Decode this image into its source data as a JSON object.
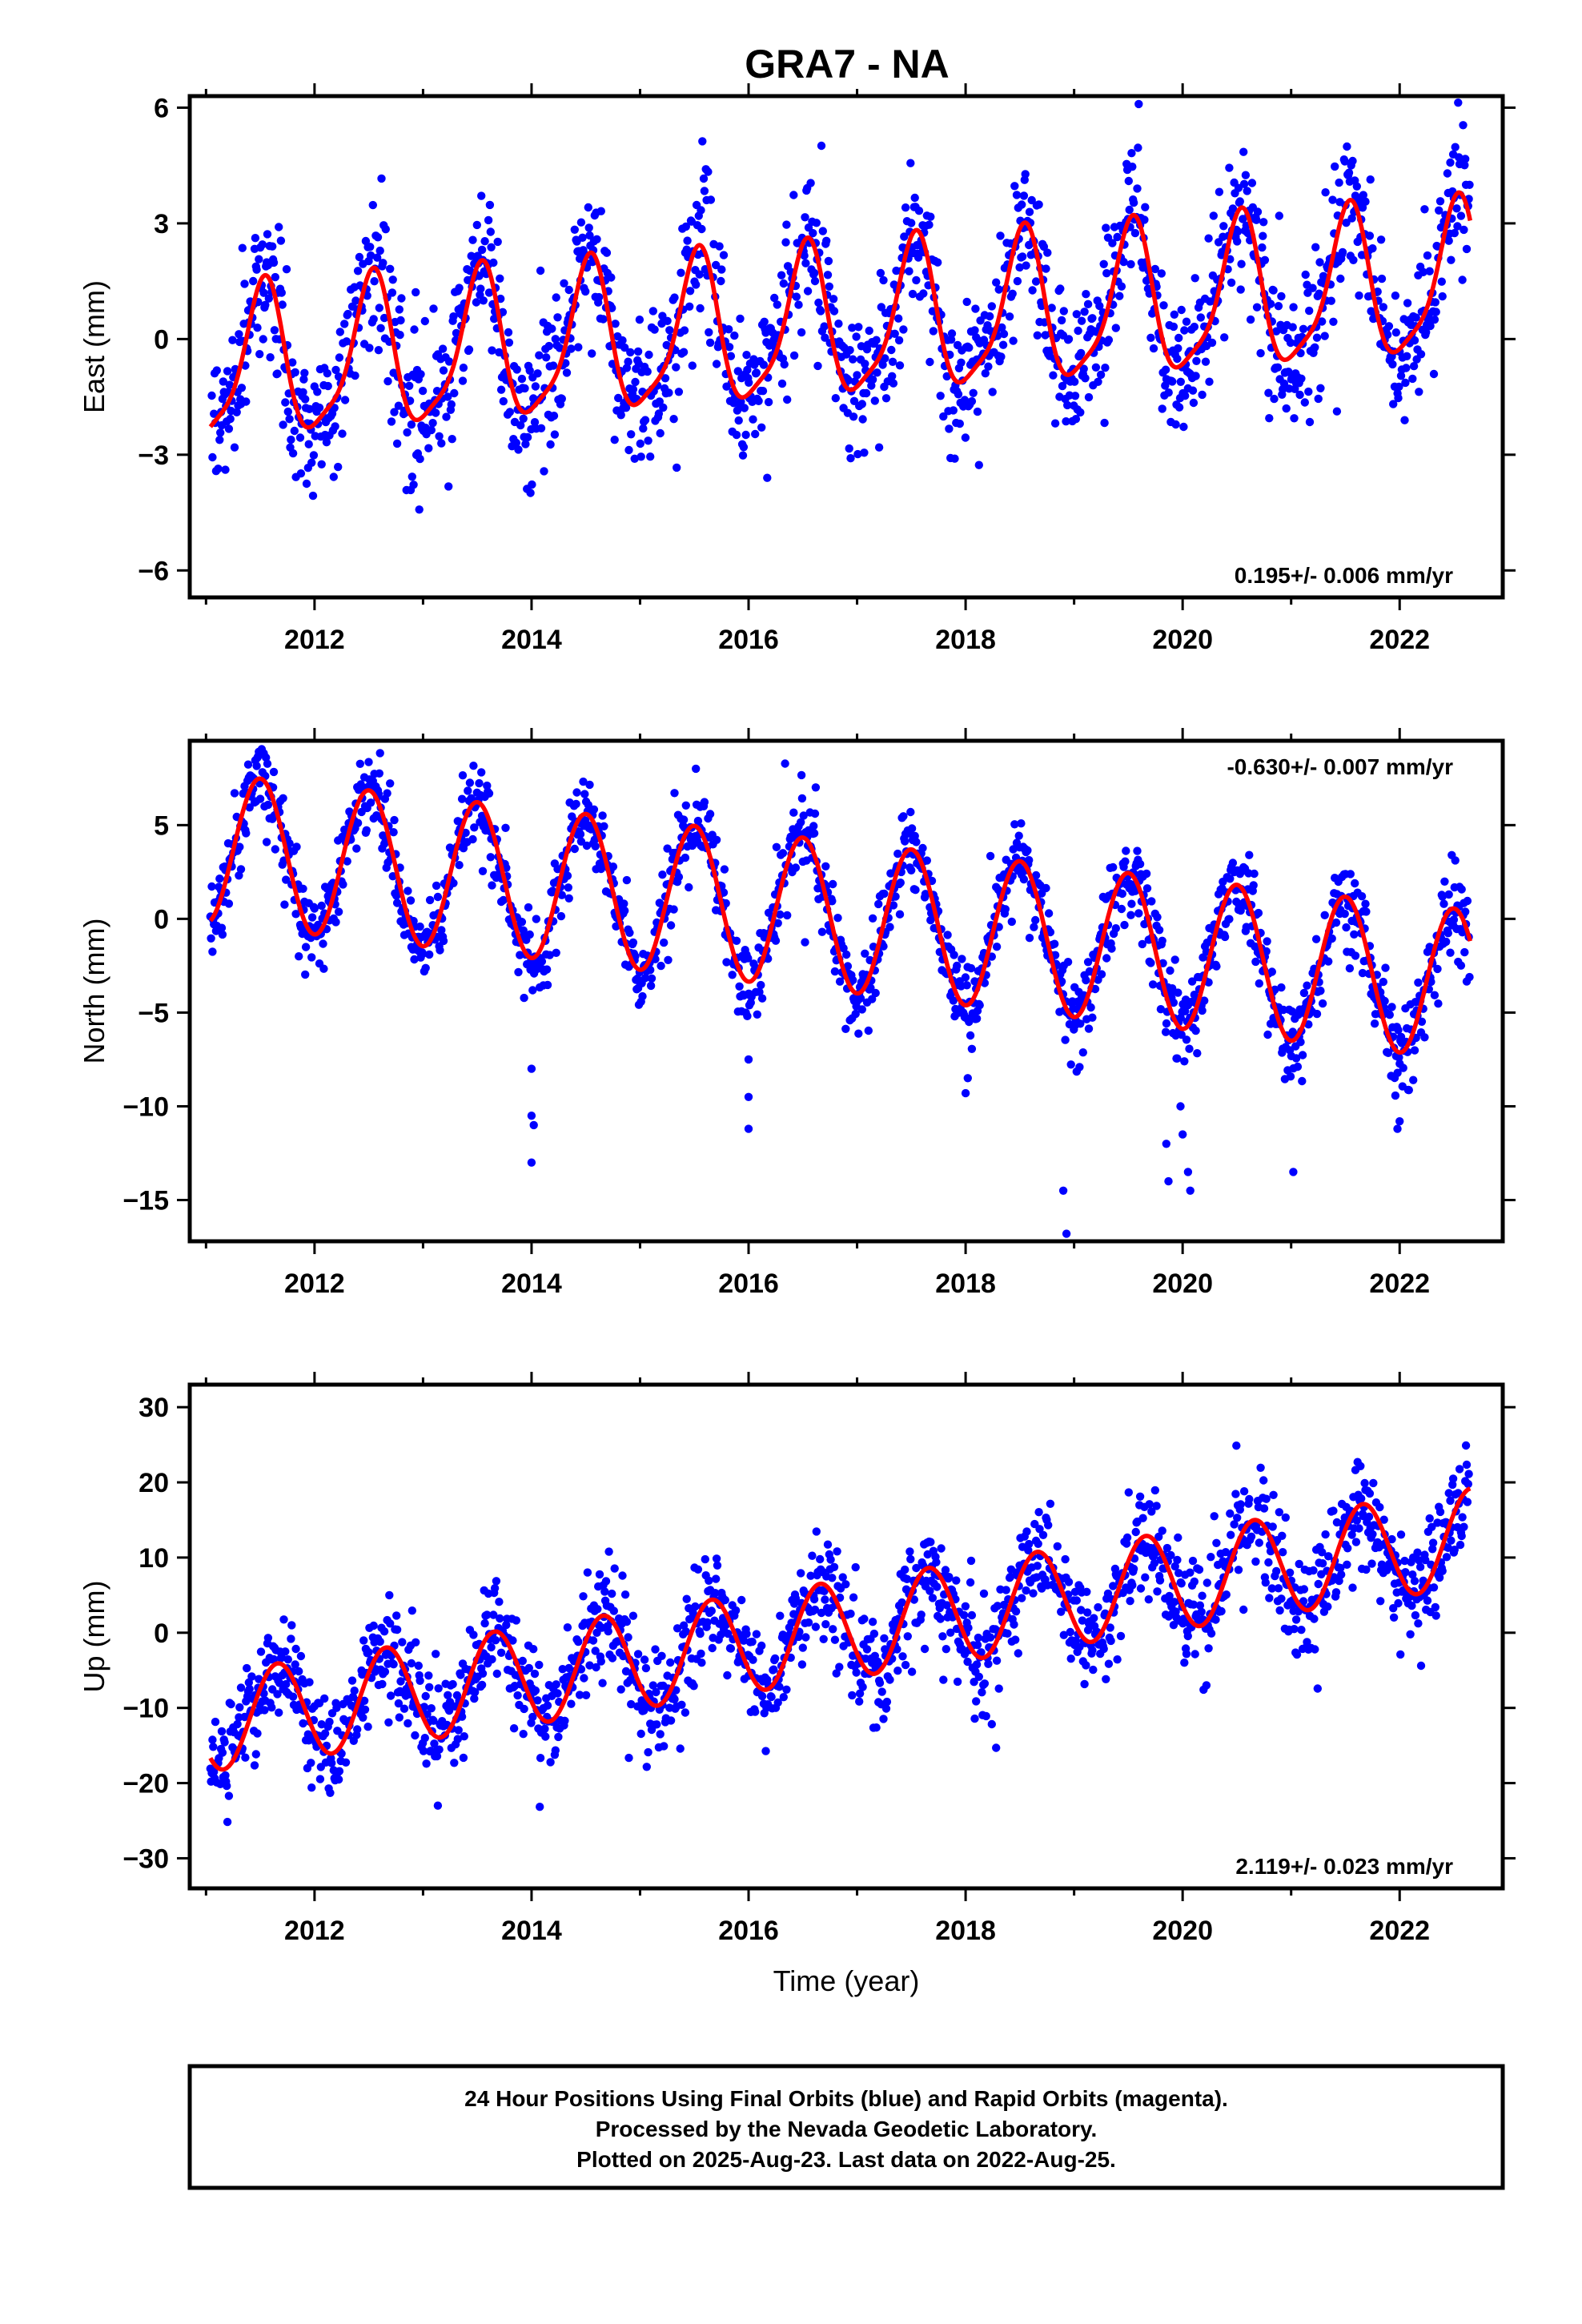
{
  "title": "GRA7 - NA",
  "colors": {
    "final_orbits": "#0000ff",
    "rapid_orbits": "#ff00ff",
    "model_fit": "#ff0000",
    "frame": "#000000"
  },
  "chart_data": [
    {
      "type": "scatter",
      "component": "east",
      "ylabel": "East (mm)",
      "xlabel": "",
      "xlim": [
        2010.85,
        2022.95
      ],
      "ylim": [
        -6.7,
        6.3
      ],
      "yticks": [
        -6,
        -3,
        0,
        3,
        6
      ],
      "ytick_labels": [
        "−6",
        "−3",
        "0",
        "3",
        "6"
      ],
      "xticks": [
        2012,
        2014,
        2016,
        2018,
        2020,
        2022
      ],
      "grid": false,
      "rate_label": "0.195+/- 0.006 mm/yr",
      "rate_label_position": "bottom-right",
      "data_start": 2011.04,
      "data_end": 2022.65,
      "model": {
        "offset": -0.8,
        "trend": 0.195,
        "annual_cos": -1.9,
        "annual_sin": -0.3,
        "semiannual_cos": 0.3,
        "semiannual_sin": 0.35
      },
      "scatter_sigma": 0.95,
      "series": [
        {
          "name": "Final Orbits (blue)",
          "color": "#0000ff"
        },
        {
          "name": "Model fit",
          "color": "#ff0000"
        }
      ]
    },
    {
      "type": "scatter",
      "component": "north",
      "ylabel": "North (mm)",
      "xlabel": "",
      "xlim": [
        2010.85,
        2022.95
      ],
      "ylim": [
        -17.2,
        9.5
      ],
      "yticks": [
        -15,
        -10,
        -5,
        0,
        5
      ],
      "ytick_labels": [
        "−15",
        "−10",
        "−5",
        "0",
        "5"
      ],
      "xticks": [
        2012,
        2014,
        2016,
        2018,
        2020,
        2022
      ],
      "grid": false,
      "rate_label": "-0.630+/- 0.007 mm/yr",
      "rate_label_position": "top-right",
      "data_start": 2011.04,
      "data_end": 2022.65,
      "model": {
        "offset": 3.8,
        "trend": -0.63,
        "annual_cos": -4.0,
        "annual_sin": 0.0,
        "semiannual_cos": 0.0,
        "semiannual_sin": 0.0
      },
      "scatter_sigma": 1.1,
      "outliers": [
        [
          2014.0,
          -8.0
        ],
        [
          2014.0,
          -10.5
        ],
        [
          2014.02,
          -11.0
        ],
        [
          2014.0,
          -13.0
        ],
        [
          2016.0,
          -7.5
        ],
        [
          2016.0,
          -9.5
        ],
        [
          2016.0,
          -11.2
        ],
        [
          2018.0,
          -9.3
        ],
        [
          2018.02,
          -8.5
        ],
        [
          2018.9,
          -14.5
        ],
        [
          2018.93,
          -16.8
        ],
        [
          2019.85,
          -12.0
        ],
        [
          2019.98,
          -10.0
        ],
        [
          2020.0,
          -11.5
        ],
        [
          2020.05,
          -13.5
        ],
        [
          2020.07,
          -14.5
        ],
        [
          2019.87,
          -14.0
        ],
        [
          2021.02,
          -13.5
        ],
        [
          2022.0,
          -10.8
        ],
        [
          2021.98,
          -11.2
        ]
      ],
      "series": [
        {
          "name": "Final Orbits (blue)",
          "color": "#0000ff"
        },
        {
          "name": "Model fit",
          "color": "#ff0000"
        }
      ]
    },
    {
      "type": "scatter",
      "component": "up",
      "ylabel": "Up (mm)",
      "xlabel": "Time (year)",
      "xlim": [
        2010.85,
        2022.95
      ],
      "ylim": [
        -34,
        33
      ],
      "yticks": [
        -30,
        -20,
        -10,
        0,
        10,
        20,
        30
      ],
      "ytick_labels": [
        "−30",
        "−20",
        "−10",
        "0",
        "10",
        "20",
        "30"
      ],
      "xticks": [
        2012,
        2014,
        2016,
        2018,
        2020,
        2022
      ],
      "grid": false,
      "rate_label": "2.119+/- 0.023 mm/yr",
      "rate_label_position": "bottom-right",
      "data_start": 2011.04,
      "data_end": 2022.65,
      "model": {
        "offset": -12.0,
        "trend": 2.119,
        "annual_cos": -3.5,
        "annual_sin": -5.5,
        "semiannual_cos": 0.0,
        "semiannual_sin": 0.0
      },
      "scatter_sigma": 3.6,
      "series": [
        {
          "name": "Final Orbits (blue)",
          "color": "#0000ff"
        },
        {
          "name": "Model fit",
          "color": "#ff0000"
        }
      ]
    }
  ],
  "caption": {
    "line1": "24 Hour Positions Using Final Orbits (blue) and Rapid Orbits (magenta).",
    "line2": "Processed by the Nevada Geodetic Laboratory.",
    "line3": "Plotted on 2025-Aug-23. Last data on 2022-Aug-25."
  }
}
